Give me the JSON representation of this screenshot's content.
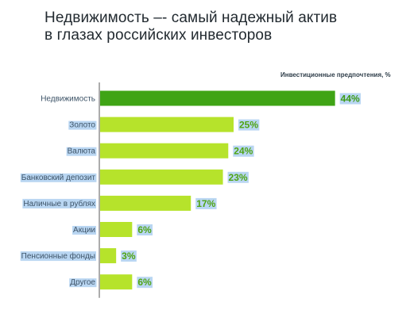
{
  "title_lines": [
    "Недвижимость –- самый надежный актив",
    "в глазах российских инвесторов"
  ],
  "colors": {
    "highlight_bar": "#3fa415",
    "bar": "#b6e32b",
    "label_bg": "#b9d6f2",
    "axis": "#5a5a5a"
  },
  "chart_data": {
    "type": "bar",
    "orientation": "horizontal",
    "title": "Недвижимость –- самый надежный актив в глазах российских инвесторов",
    "subtitle": "Инвестиционные предпочтения, %",
    "categories": [
      "Недвижимость",
      "Золото",
      "Валюта",
      "Банковский депозит",
      "Наличные в рублях",
      "Акции",
      "Пенсионные фонды",
      "Другое"
    ],
    "values": [
      44,
      25,
      24,
      23,
      17,
      6,
      3,
      6
    ],
    "value_labels": [
      "44%",
      "25%",
      "24%",
      "23%",
      "17%",
      "6%",
      "3%",
      "6%"
    ],
    "highlight_index": 0,
    "xlim": [
      0,
      50
    ],
    "grid": false,
    "legend": "none"
  }
}
